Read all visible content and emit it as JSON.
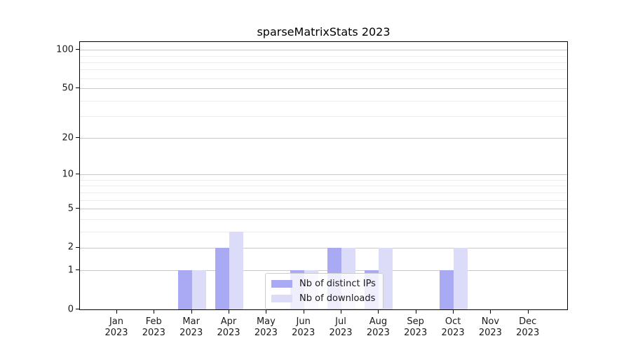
{
  "chart_data": {
    "type": "bar",
    "title": "sparseMatrixStats 2023",
    "categories": [
      "Jan",
      "Feb",
      "Mar",
      "Apr",
      "May",
      "Jun",
      "Jul",
      "Aug",
      "Sep",
      "Oct",
      "Nov",
      "Dec"
    ],
    "year": "2023",
    "series": [
      {
        "name": "Nb of distinct IPs",
        "color": "#a9a9f4",
        "values": [
          0,
          0,
          1,
          2,
          0,
          1,
          2,
          1,
          0,
          1,
          0,
          0
        ]
      },
      {
        "name": "Nb of downloads",
        "color": "#dcdcf9",
        "values": [
          0,
          0,
          1,
          3,
          0,
          1,
          2,
          2,
          0,
          2,
          0,
          0
        ]
      }
    ],
    "xlabel": "",
    "ylabel": "",
    "y_scale": "log1p",
    "ylim": [
      0,
      115
    ],
    "y_tick_values": [
      0,
      1,
      2,
      5,
      10,
      20,
      50,
      100
    ],
    "y_tick_labels": [
      "0",
      "1",
      "2",
      "5",
      "10",
      "20",
      "50",
      "100"
    ],
    "y_minor_gridlines": [
      3,
      4,
      6,
      7,
      8,
      9,
      30,
      40,
      60,
      70,
      80,
      90
    ],
    "grid": true,
    "legend_position": "lower center"
  },
  "colors": {
    "major_grid": "#c9c9c9",
    "minor_grid": "#ededed",
    "axis": "#000000",
    "background": "#ffffff"
  }
}
